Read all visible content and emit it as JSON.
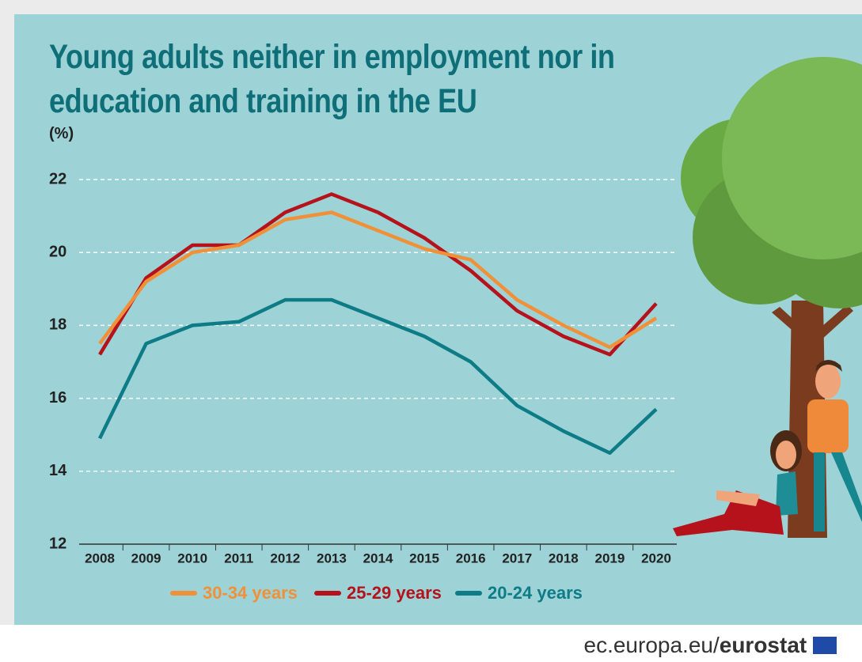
{
  "chart_data": {
    "type": "line",
    "title": "Young adults neither in employment nor in education and training in the EU",
    "ylabel": "(%)",
    "categories": [
      "2008",
      "2009",
      "2010",
      "2011",
      "2012",
      "2013",
      "2014",
      "2015",
      "2016",
      "2017",
      "2018",
      "2019",
      "2020"
    ],
    "series": [
      {
        "name": "30-34 years",
        "color": "#f0913a",
        "values": [
          17.5,
          19.2,
          20.0,
          20.2,
          20.9,
          21.1,
          20.6,
          20.1,
          19.8,
          18.7,
          18.0,
          17.4,
          18.2
        ]
      },
      {
        "name": "25-29 years",
        "color": "#b5121b",
        "values": [
          17.2,
          19.3,
          20.2,
          20.2,
          21.1,
          21.6,
          21.1,
          20.4,
          19.5,
          18.4,
          17.7,
          17.2,
          18.6
        ]
      },
      {
        "name": "20-24 years",
        "color": "#0e7c86",
        "values": [
          14.9,
          17.5,
          18.0,
          18.1,
          18.7,
          18.7,
          18.2,
          17.7,
          17.0,
          15.8,
          15.1,
          14.5,
          15.7
        ]
      }
    ],
    "ylim": [
      12,
      22
    ],
    "yticks": [
      12,
      14,
      16,
      18,
      20,
      22
    ],
    "grid": true,
    "legend": "bottom"
  },
  "footer": {
    "site": "ec.europa.eu/",
    "brand": "eurostat"
  }
}
